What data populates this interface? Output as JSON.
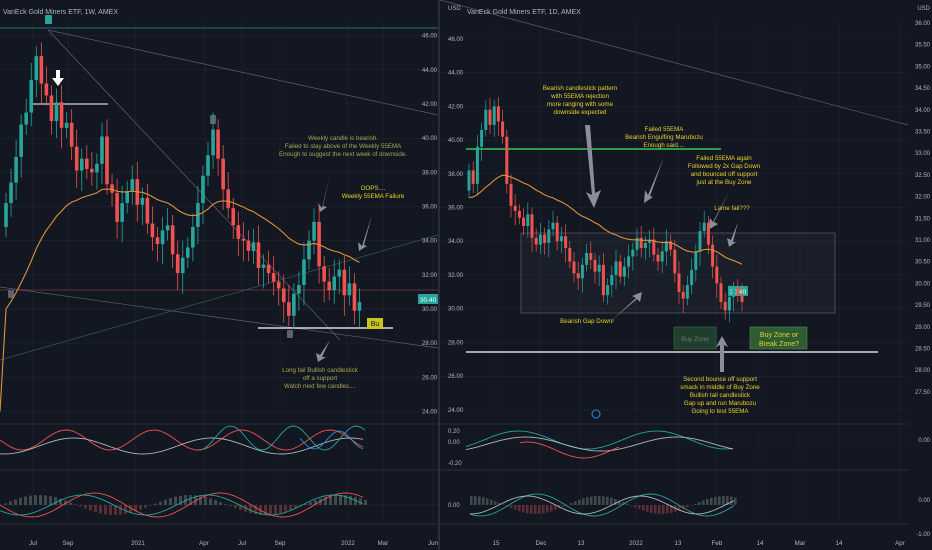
{
  "colors": {
    "background": "#131722",
    "grid": "#232632",
    "up": "#26a69a",
    "down": "#ef5350",
    "ema": "#e0913a",
    "text": "#b2b5be",
    "note_yellow": "#e8d22a",
    "note_olive": "#a8a84a",
    "green_line": "#34c759",
    "white_line": "#ffffff"
  },
  "chart_data": [
    {
      "type": "candlestick",
      "title": "VanEck Gold Miners ETF, 1W, AMEX",
      "yticks": [
        "46.00",
        "44.00",
        "42.00",
        "40.00",
        "38.00",
        "36.00",
        "34.00",
        "32.00",
        "30.00",
        "28.00",
        "26.00",
        "24.00"
      ],
      "ylim": [
        23.5,
        46.8
      ],
      "xticks": [
        "Jul",
        "Sep",
        "2021",
        "Apr",
        "Jul",
        "Sep",
        "2022",
        "Mar",
        "Jun"
      ],
      "last_price": "30.40",
      "ema_label": "55EMA",
      "annotations": [
        "Weekly candle is bearish.",
        "Failed to stay above of the Weekly 55EMA",
        "Enough to suggest the next week of downside.",
        "OOPS....",
        "Weekly 55EMA Failure",
        "Long tail Bullish candlestick",
        "off a support",
        "Watch next few candles....",
        "Bu"
      ],
      "weekly_series": {
        "close": [
          36.2,
          37.4,
          38.9,
          40.8,
          41.5,
          43.4,
          44.8,
          43.2,
          42.5,
          41.0,
          42.1,
          40.6,
          40.9,
          39.5,
          38.1,
          38.8,
          38.2,
          38.0,
          38.5,
          40.1,
          37.3,
          36.8,
          35.1,
          36.2,
          36.9,
          37.6,
          36.1,
          36.5,
          35.0,
          34.2,
          33.8,
          34.6,
          34.9,
          33.2,
          32.1,
          33.0,
          33.6,
          34.8,
          36.2,
          37.8,
          39.0,
          40.5,
          38.8,
          37.0,
          35.9,
          34.9,
          34.1,
          34.0,
          33.4,
          33.9,
          32.4,
          32.6,
          32.1,
          31.6,
          31.2,
          30.4,
          29.6,
          30.9,
          31.4,
          32.9,
          34.0,
          35.1,
          32.5,
          31.6,
          31.1,
          31.9,
          32.3,
          30.8,
          31.5,
          29.9,
          30.4
        ]
      }
    },
    {
      "type": "candlestick",
      "title": "VanEck Gold Miners ETF, 1D, AMEX",
      "yticks": [
        "46.00",
        "44.00",
        "42.00",
        "40.00",
        "38.00",
        "36.00",
        "34.00",
        "32.00",
        "30.00",
        "28.00",
        "26.00",
        "24.00"
      ],
      "ylim": [
        23.4,
        47.0
      ],
      "right_ticks": [
        "36.00",
        "35.50",
        "35.00",
        "34.50",
        "34.00",
        "33.50",
        "33.00",
        "32.50",
        "32.00",
        "31.50",
        "31.00",
        "30.50",
        "30.00",
        "29.50",
        "29.00",
        "28.50",
        "28.00",
        "27.50"
      ],
      "right_label": "USD",
      "xticks": [
        "15",
        "Dec",
        "13",
        "2022",
        "13",
        "Feb",
        "14",
        "Mar",
        "14",
        "Apr"
      ],
      "last_price": "30.40",
      "annotations": [
        "Bearish candlestick pattern",
        "with 55EMA rejection",
        "more ranging with some",
        "downside expected",
        "Failed 55EMA",
        "Bearish Engulfing Marubozu",
        "Enough said....",
        "Failed 55EMA again",
        "Followed by 2x Gap Down",
        "and bounced off support",
        "just at the Buy Zone",
        "Lame fail???",
        "Bearish Gap Down!",
        "Buy Zone",
        "Buy Zone or",
        "Break Zone?",
        "Second bounce off support",
        "smack in middle of Buy Zone",
        "Bullish tail candlestick",
        "Gap up and run Marubozu",
        "Going to test 55EMA"
      ],
      "daily_series": {
        "close": [
          38.2,
          37.4,
          39.6,
          40.6,
          41.8,
          40.9,
          42.0,
          41.1,
          40.2,
          37.4,
          36.1,
          35.8,
          35.4,
          34.9,
          35.6,
          34.2,
          33.8,
          34.4,
          33.9,
          34.7,
          35.1,
          34.0,
          34.3,
          33.6,
          32.8,
          32.1,
          31.8,
          32.6,
          33.3,
          32.9,
          32.2,
          32.6,
          30.8,
          31.4,
          32.0,
          32.8,
          31.9,
          32.5,
          33.1,
          33.5,
          34.2,
          33.6,
          33.9,
          34.1,
          33.2,
          32.8,
          33.4,
          34.0,
          33.5,
          32.1,
          31.0,
          30.6,
          31.4,
          32.3,
          33.4,
          34.6,
          35.1,
          33.8,
          32.5,
          31.5,
          30.4,
          29.9,
          30.7,
          31.2,
          30.8,
          30.4
        ]
      }
    }
  ],
  "oscillators": {
    "upper_ticks_right": [
      "0.00"
    ],
    "upper_ticks_mid": [
      "0.20",
      "0.00",
      "-0.20"
    ],
    "lower_ticks_right": [
      "0.00",
      "-1.00"
    ],
    "lower_ticks_mid": [
      "0.00"
    ]
  }
}
